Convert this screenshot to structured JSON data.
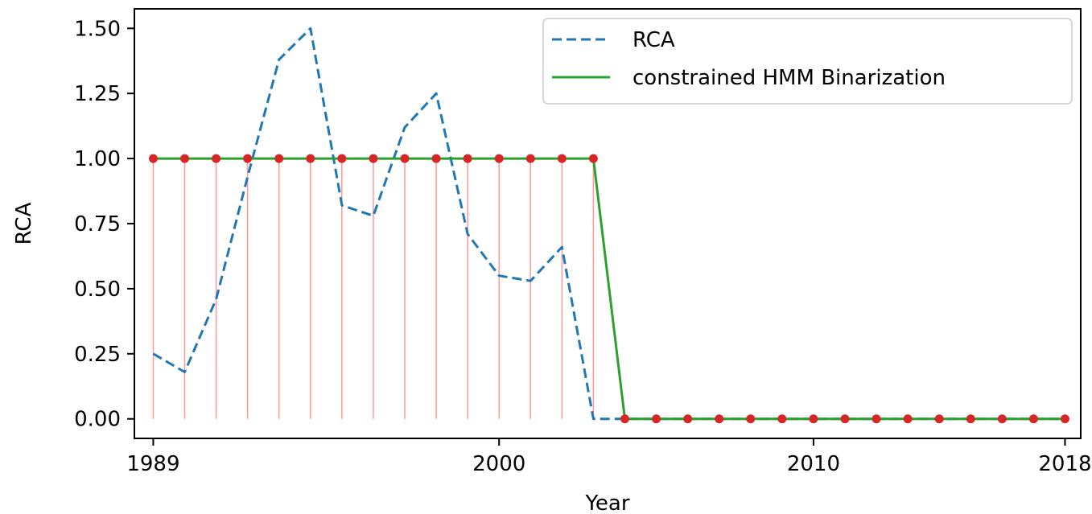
{
  "chart_data": {
    "type": "line",
    "xlabel": "Year",
    "ylabel": "RCA",
    "xlim": [
      1988.4,
      2018.5
    ],
    "ylim": [
      -0.075,
      1.575
    ],
    "x_ticks": [
      1989,
      2000,
      2010,
      2018
    ],
    "x_tick_labels": [
      "1989",
      "2000",
      "2010",
      "2018"
    ],
    "y_ticks": [
      0.0,
      0.25,
      0.5,
      0.75,
      1.0,
      1.25,
      1.5
    ],
    "y_tick_labels": [
      "0.00",
      "0.25",
      "0.50",
      "0.75",
      "1.00",
      "1.25",
      "1.50"
    ],
    "grid": false,
    "legend_position": "top-right",
    "x": [
      1989,
      1990,
      1991,
      1992,
      1993,
      1994,
      1995,
      1996,
      1997,
      1998,
      1999,
      2000,
      2001,
      2002,
      2003,
      2004,
      2005,
      2006,
      2007,
      2008,
      2009,
      2010,
      2011,
      2012,
      2013,
      2014,
      2015,
      2016,
      2017,
      2018
    ],
    "series": [
      {
        "name": "RCA",
        "style": "dashed",
        "color": "#1f77b4",
        "values": [
          0.25,
          0.18,
          0.46,
          0.93,
          1.38,
          1.5,
          0.82,
          0.78,
          1.12,
          1.25,
          0.71,
          0.55,
          0.53,
          0.66,
          0.0,
          0.0,
          0.0,
          0.0,
          0.0,
          0.0,
          0.0,
          0.0,
          0.0,
          0.0,
          0.0,
          0.0,
          0.0,
          0.0,
          0.0,
          0.0
        ]
      },
      {
        "name": "constrained HMM Binarization",
        "style": "solid",
        "color": "#2ca02c",
        "values": [
          1,
          1,
          1,
          1,
          1,
          1,
          1,
          1,
          1,
          1,
          1,
          1,
          1,
          1,
          1,
          0,
          0,
          0,
          0,
          0,
          0,
          0,
          0,
          0,
          0,
          0,
          0,
          0,
          0,
          0
        ]
      }
    ],
    "stems": {
      "color": "#ff9896",
      "marker_color": "#d62728",
      "values": [
        1,
        1,
        1,
        1,
        1,
        1,
        1,
        1,
        1,
        1,
        1,
        1,
        1,
        1,
        1,
        0,
        0,
        0,
        0,
        0,
        0,
        0,
        0,
        0,
        0,
        0,
        0,
        0,
        0,
        0
      ]
    }
  }
}
